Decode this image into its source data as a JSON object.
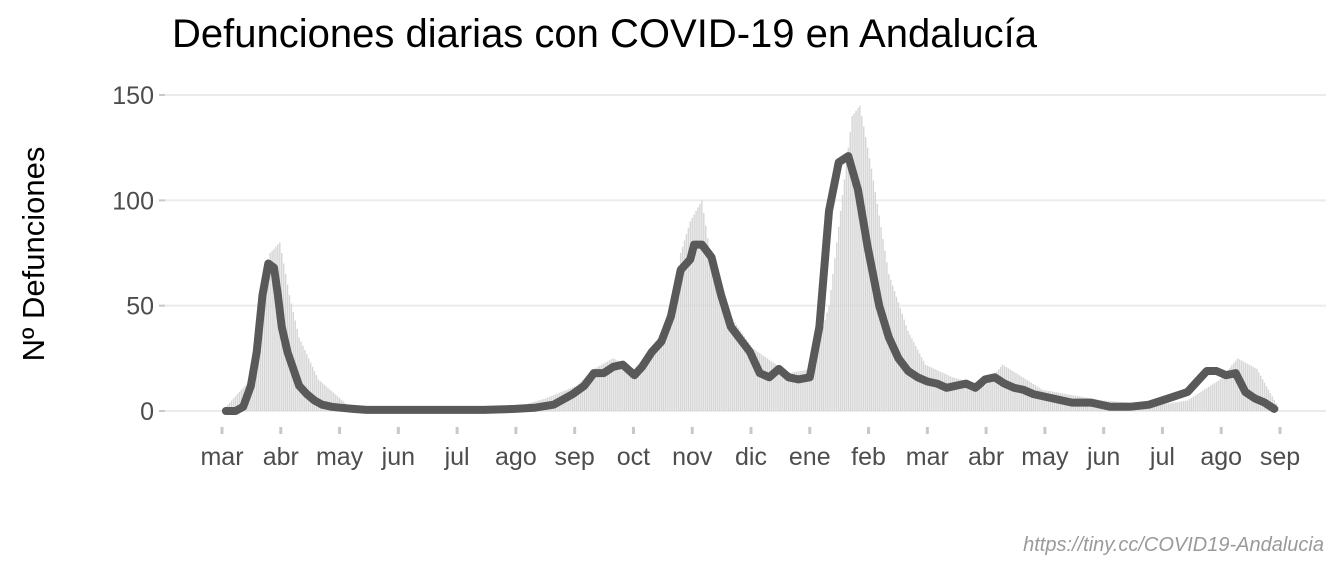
{
  "chart_data": {
    "type": "bar",
    "title": "Defunciones diarias con COVID-19 en Andalucía",
    "xlabel": "",
    "ylabel": "Nº Defunciones",
    "caption": "https://tiny.cc/COVID19-Andalucia",
    "x_ticks": [
      "mar",
      "abr",
      "may",
      "jun",
      "jul",
      "ago",
      "sep",
      "oct",
      "nov",
      "dic",
      "ene",
      "feb",
      "mar",
      "abr",
      "may",
      "jun",
      "jul",
      "ago",
      "sep"
    ],
    "y_ticks": [
      "0",
      "50",
      "100",
      "150"
    ],
    "ylim": [
      0,
      155
    ],
    "x_range": [
      "2020-03-01",
      "2021-09-01"
    ],
    "grid": "horizontal",
    "colors": {
      "bars": "#d6d6d6",
      "line": "#595959",
      "grid": "#ebebeb"
    },
    "series": [
      {
        "kind": "moving-average",
        "x": [
          "2020-03-03",
          "2020-03-08",
          "2020-03-12",
          "2020-03-16",
          "2020-03-19",
          "2020-03-22",
          "2020-03-25",
          "2020-03-28",
          "2020-03-30",
          "2020-04-01",
          "2020-04-04",
          "2020-04-07",
          "2020-04-10",
          "2020-04-14",
          "2020-04-18",
          "2020-04-22",
          "2020-04-27",
          "2020-05-02",
          "2020-05-08",
          "2020-05-15",
          "2020-05-25",
          "2020-06-10",
          "2020-06-25",
          "2020-07-15",
          "2020-07-31",
          "2020-08-10",
          "2020-08-20",
          "2020-08-30",
          "2020-09-05",
          "2020-09-10",
          "2020-09-15",
          "2020-09-20",
          "2020-09-25",
          "2020-10-01",
          "2020-10-05",
          "2020-10-10",
          "2020-10-15",
          "2020-10-20",
          "2020-10-25",
          "2020-10-30",
          "2020-11-01",
          "2020-11-05",
          "2020-11-10",
          "2020-11-15",
          "2020-11-20",
          "2020-11-25",
          "2020-11-30",
          "2020-12-05",
          "2020-12-10",
          "2020-12-15",
          "2020-12-20",
          "2020-12-25",
          "2020-12-31",
          "2021-01-05",
          "2021-01-10",
          "2021-01-15",
          "2021-01-20",
          "2021-01-25",
          "2021-01-30",
          "2021-02-05",
          "2021-02-10",
          "2021-02-15",
          "2021-02-20",
          "2021-02-25",
          "2021-03-02",
          "2021-03-07",
          "2021-03-12",
          "2021-03-17",
          "2021-03-22",
          "2021-03-27",
          "2021-04-01",
          "2021-04-06",
          "2021-04-11",
          "2021-04-16",
          "2021-04-21",
          "2021-04-26",
          "2021-05-06",
          "2021-05-16",
          "2021-05-26",
          "2021-06-05",
          "2021-06-15",
          "2021-06-25",
          "2021-07-05",
          "2021-07-15",
          "2021-07-20",
          "2021-07-25",
          "2021-07-30",
          "2021-08-04",
          "2021-08-09",
          "2021-08-14",
          "2021-08-19",
          "2021-08-24",
          "2021-08-29"
        ],
        "values": [
          0,
          0,
          2,
          12,
          28,
          55,
          70,
          68,
          55,
          40,
          28,
          20,
          12,
          8,
          5,
          3,
          2,
          1.5,
          1,
          0.5,
          0.5,
          0.5,
          0.5,
          0.5,
          1,
          1.5,
          3,
          8,
          12,
          18,
          18,
          21,
          22,
          17,
          21,
          28,
          33,
          45,
          67,
          72,
          79,
          79,
          73,
          55,
          40,
          34,
          28,
          18,
          16,
          20,
          16,
          15,
          16,
          40,
          95,
          118,
          121,
          105,
          78,
          50,
          35,
          25,
          19,
          16,
          14,
          13,
          11,
          12,
          13,
          11,
          15,
          16,
          13,
          11,
          10,
          8,
          6,
          4,
          4,
          2,
          2,
          3,
          6,
          9,
          14,
          19,
          19,
          17,
          18,
          9,
          6,
          4,
          1
        ]
      }
    ],
    "bars": {
      "x": [
        "2020-03-01",
        "2020-03-16",
        "2020-03-21",
        "2020-03-26",
        "2020-03-31",
        "2020-04-05",
        "2020-04-10",
        "2020-04-20",
        "2020-05-05",
        "2020-06-01",
        "2020-07-01",
        "2020-08-01",
        "2020-08-16",
        "2020-09-01",
        "2020-09-10",
        "2020-09-20",
        "2020-10-01",
        "2020-10-10",
        "2020-10-20",
        "2020-10-25",
        "2020-10-30",
        "2020-11-05",
        "2020-11-10",
        "2020-11-20",
        "2020-12-01",
        "2020-12-20",
        "2021-01-01",
        "2021-01-10",
        "2021-01-18",
        "2021-01-22",
        "2021-01-26",
        "2021-02-01",
        "2021-02-10",
        "2021-02-20",
        "2021-03-01",
        "2021-03-15",
        "2021-04-01",
        "2021-04-10",
        "2021-05-01",
        "2021-06-01",
        "2021-07-01",
        "2021-07-15",
        "2021-08-01",
        "2021-08-10",
        "2021-08-20",
        "2021-08-31"
      ],
      "values": [
        0,
        15,
        50,
        75,
        80,
        55,
        35,
        15,
        3,
        1,
        1,
        2,
        6,
        12,
        20,
        25,
        20,
        30,
        45,
        75,
        90,
        100,
        70,
        45,
        30,
        18,
        20,
        50,
        110,
        140,
        145,
        115,
        65,
        38,
        22,
        16,
        12,
        22,
        10,
        5,
        3,
        5,
        15,
        25,
        20,
        2
      ]
    }
  }
}
